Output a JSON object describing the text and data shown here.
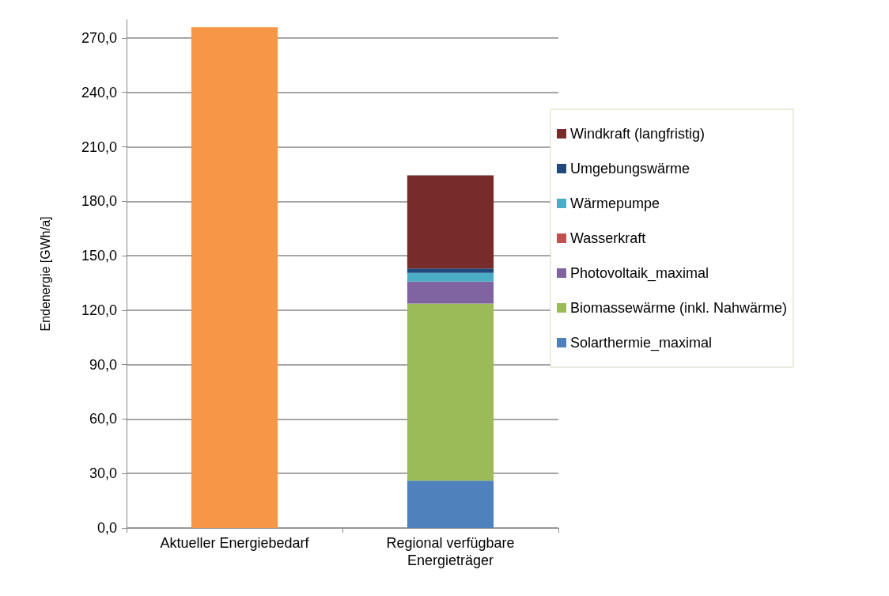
{
  "chart_data": {
    "type": "bar",
    "stacked": true,
    "ylabel": "Endenergie [GWh/a]",
    "categories": [
      "Aktueller Energiebedarf",
      "Regional verfügbare\nEnergieträger"
    ],
    "series": [
      {
        "color": "#f79646",
        "values": [
          276,
          null
        ]
      },
      {
        "name": "Solarthermie_maximal",
        "color": "#4f81bd",
        "values": [
          null,
          26.1
        ]
      },
      {
        "name": "Biomassewärme (inkl. Nahwärme)",
        "color": "#9bbb59",
        "values": [
          null,
          97.5
        ]
      },
      {
        "name": "Photovoltaik_maximal",
        "color": "#8064a2",
        "values": [
          null,
          12.2
        ]
      },
      {
        "name": "Wasserkraft",
        "color": "#c0504d",
        "values": [
          null,
          0
        ]
      },
      {
        "name": "Wärmepumpe",
        "color": "#4bacc6",
        "values": [
          null,
          4.7
        ]
      },
      {
        "name": "Umgebungswärme",
        "color": "#1f497d",
        "values": [
          null,
          2.4
        ]
      },
      {
        "name": "Windkraft (langfristig)",
        "color": "#772c2a",
        "values": [
          null,
          51.4
        ]
      }
    ],
    "ylim": [
      0,
      280
    ],
    "yticks": [
      {
        "value": 0,
        "label": "0,0"
      },
      {
        "value": 30,
        "label": "30,0"
      },
      {
        "value": 60,
        "label": "60,0"
      },
      {
        "value": 90,
        "label": "90,0"
      },
      {
        "value": 120,
        "label": "120,0"
      },
      {
        "value": 150,
        "label": "150,0"
      },
      {
        "value": 180,
        "label": "180,0"
      },
      {
        "value": 210,
        "label": "210,0"
      },
      {
        "value": 240,
        "label": "240,0"
      },
      {
        "value": 270,
        "label": "270,0"
      }
    ],
    "grid": "y",
    "legend": "right"
  }
}
